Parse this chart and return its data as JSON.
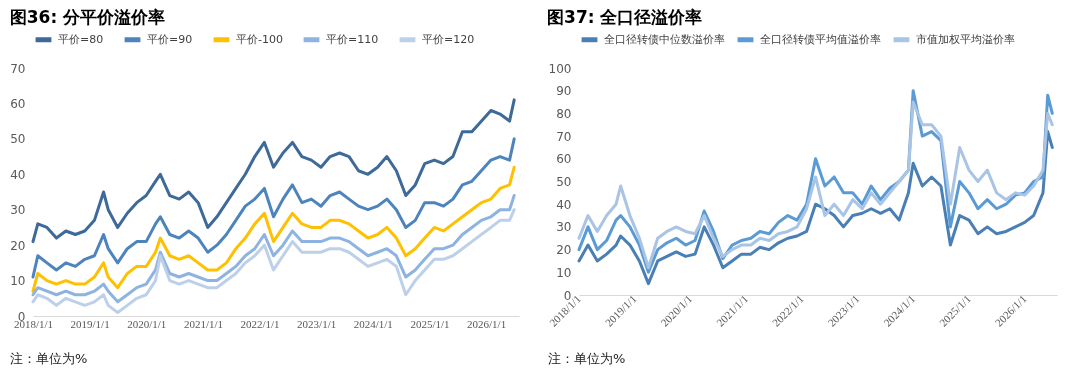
{
  "chart_data": [
    {
      "type": "line",
      "title": "图36: 分平价溢价率",
      "legend": "top",
      "annotations": [
        "注：单位为%"
      ],
      "x": [
        "2018-01",
        "2018-02",
        "2018-04",
        "2018-06",
        "2018-08",
        "2018-10",
        "2018-12",
        "2019-02",
        "2019-04",
        "2019-05",
        "2019-07",
        "2019-09",
        "2019-11",
        "2020-01",
        "2020-03",
        "2020-04",
        "2020-06",
        "2020-08",
        "2020-10",
        "2020-12",
        "2021-02",
        "2021-04",
        "2021-06",
        "2021-08",
        "2021-10",
        "2021-12",
        "2022-02",
        "2022-04",
        "2022-06",
        "2022-08",
        "2022-10",
        "2022-12",
        "2023-02",
        "2023-04",
        "2023-06",
        "2023-08",
        "2023-10",
        "2023-12",
        "2024-02",
        "2024-04",
        "2024-06",
        "2024-08",
        "2024-10",
        "2024-12",
        "2025-02",
        "2025-04",
        "2025-06",
        "2025-08",
        "2025-10",
        "2025-12",
        "2026-02",
        "2026-04",
        "2026-06",
        "2026-07"
      ],
      "xlim": [
        "2018-01-01",
        "2026-08-01"
      ],
      "xticks": [
        {
          "value": "2018-01-01",
          "label": "2018/1/1"
        },
        {
          "value": "2019-01-01",
          "label": "2019/1/1"
        },
        {
          "value": "2020-01-01",
          "label": "2020/1/1"
        },
        {
          "value": "2021-01-01",
          "label": "2021/1/1"
        },
        {
          "value": "2022-01-01",
          "label": "2022/1/1"
        },
        {
          "value": "2023-01-01",
          "label": "2023/1/1"
        },
        {
          "value": "2024-01-01",
          "label": "2024/1/1"
        },
        {
          "value": "2025-01-01",
          "label": "2025/1/1"
        },
        {
          "value": "2026-01-01",
          "label": "2026/1/1"
        }
      ],
      "ylim": [
        0,
        70
      ],
      "yticks": [
        0,
        10,
        20,
        30,
        40,
        50,
        60,
        70
      ],
      "series": [
        {
          "name": "平价=80",
          "color": "#3d6a99",
          "values": [
            21,
            26,
            25,
            22,
            24,
            23,
            24,
            27,
            35,
            30,
            25,
            29,
            32,
            34,
            38,
            40,
            34,
            33,
            35,
            32,
            25,
            28,
            32,
            36,
            40,
            45,
            49,
            42,
            46,
            49,
            45,
            44,
            42,
            45,
            46,
            45,
            41,
            40,
            42,
            45,
            41,
            34,
            37,
            43,
            44,
            43,
            45,
            52,
            52,
            55,
            58,
            57,
            55,
            61
          ]
        },
        {
          "name": "平价=90",
          "color": "#4d84bd",
          "values": [
            11,
            17,
            15,
            13,
            15,
            14,
            16,
            17,
            23,
            19,
            15,
            19,
            21,
            21,
            26,
            28,
            23,
            22,
            24,
            22,
            18,
            20,
            23,
            27,
            31,
            33,
            36,
            28,
            33,
            37,
            32,
            33,
            31,
            34,
            35,
            33,
            31,
            30,
            31,
            33,
            30,
            25,
            27,
            32,
            32,
            31,
            33,
            37,
            38,
            41,
            44,
            45,
            44,
            50
          ]
        },
        {
          "name": "平价-100",
          "color": "#ffc000",
          "values": [
            7,
            12,
            10,
            9,
            10,
            9,
            9,
            11,
            15,
            11,
            8,
            12,
            14,
            14,
            18,
            22,
            17,
            16,
            17,
            15,
            13,
            13,
            15,
            19,
            22,
            26,
            29,
            21,
            25,
            29,
            26,
            25,
            25,
            27,
            27,
            26,
            24,
            22,
            23,
            25,
            22,
            17,
            19,
            22,
            25,
            24,
            26,
            28,
            30,
            32,
            33,
            36,
            37,
            42
          ]
        },
        {
          "name": "平价=110",
          "color": "#8db3e2",
          "values": [
            6,
            8,
            7,
            6,
            7,
            6,
            6,
            7,
            9,
            7,
            4,
            6,
            8,
            9,
            13,
            18,
            12,
            11,
            12,
            11,
            10,
            10,
            12,
            14,
            17,
            19,
            23,
            17,
            20,
            24,
            21,
            21,
            21,
            22,
            22,
            21,
            19,
            17,
            18,
            19,
            17,
            11,
            13,
            16,
            19,
            19,
            20,
            23,
            25,
            27,
            28,
            30,
            30,
            34
          ]
        },
        {
          "name": "平价=120",
          "color": "#bdd0ea",
          "values": [
            4,
            6,
            5,
            3,
            5,
            4,
            3,
            4,
            6,
            3,
            1,
            3,
            5,
            6,
            10,
            17,
            10,
            9,
            10,
            9,
            8,
            8,
            10,
            12,
            15,
            17,
            20,
            13,
            17,
            21,
            18,
            18,
            18,
            19,
            19,
            18,
            16,
            14,
            15,
            16,
            14,
            6,
            10,
            13,
            16,
            16,
            17,
            19,
            21,
            23,
            25,
            27,
            27,
            30
          ]
        }
      ]
    },
    {
      "type": "line",
      "title": "图37: 全口径溢价率",
      "legend": "top",
      "annotations": [
        "注：单位为%"
      ],
      "x": [
        "2018-01",
        "2018-03",
        "2018-05",
        "2018-07",
        "2018-09",
        "2018-10",
        "2018-12",
        "2019-02",
        "2019-04",
        "2019-06",
        "2019-08",
        "2019-10",
        "2019-12",
        "2020-02",
        "2020-04",
        "2020-06",
        "2020-08",
        "2020-10",
        "2020-12",
        "2021-02",
        "2021-04",
        "2021-06",
        "2021-08",
        "2021-10",
        "2021-12",
        "2022-02",
        "2022-04",
        "2022-06",
        "2022-08",
        "2022-10",
        "2022-12",
        "2023-02",
        "2023-04",
        "2023-06",
        "2023-08",
        "2023-10",
        "2023-12",
        "2024-01",
        "2024-03",
        "2024-05",
        "2024-07",
        "2024-09",
        "2024-11",
        "2025-01",
        "2025-03",
        "2025-05",
        "2025-07",
        "2025-09",
        "2025-11",
        "2026-01",
        "2026-03",
        "2026-05",
        "2026-06",
        "2026-07"
      ],
      "xlim": [
        "2018-01-01",
        "2026-08-01"
      ],
      "xticks": [
        {
          "value": "2018-01-01",
          "label": "2018/1/1"
        },
        {
          "value": "2019-01-01",
          "label": "2019/1/1"
        },
        {
          "value": "2020-01-01",
          "label": "2020/1/1"
        },
        {
          "value": "2021-01-01",
          "label": "2021/1/1"
        },
        {
          "value": "2022-01-01",
          "label": "2022/1/1"
        },
        {
          "value": "2023-01-01",
          "label": "2023/1/1"
        },
        {
          "value": "2024-01-01",
          "label": "2024/1/1"
        },
        {
          "value": "2025-01-01",
          "label": "2025/1/1"
        },
        {
          "value": "2026-01-01",
          "label": "2026/1/1"
        }
      ],
      "ylim": [
        0,
        100
      ],
      "yticks": [
        0,
        10,
        20,
        30,
        40,
        50,
        60,
        70,
        80,
        90,
        100
      ],
      "series": [
        {
          "name": "全口径转债中位数溢价率",
          "color": "#4a7fb5",
          "values": [
            15,
            22,
            15,
            18,
            22,
            26,
            22,
            15,
            5,
            15,
            17,
            19,
            17,
            18,
            30,
            22,
            12,
            15,
            18,
            18,
            21,
            20,
            23,
            25,
            26,
            28,
            40,
            38,
            35,
            30,
            35,
            36,
            38,
            36,
            38,
            33,
            45,
            58,
            48,
            52,
            48,
            22,
            35,
            33,
            27,
            30,
            27,
            28,
            30,
            32,
            35,
            45,
            72,
            65
          ]
        },
        {
          "name": "全口径转债平均值溢价率",
          "color": "#5b9bd5",
          "values": [
            20,
            30,
            20,
            24,
            33,
            35,
            30,
            22,
            10,
            20,
            23,
            25,
            22,
            24,
            37,
            28,
            16,
            22,
            24,
            25,
            28,
            27,
            32,
            35,
            33,
            40,
            60,
            48,
            52,
            45,
            45,
            40,
            48,
            42,
            47,
            50,
            55,
            90,
            70,
            72,
            68,
            30,
            50,
            45,
            38,
            42,
            38,
            40,
            44,
            45,
            50,
            52,
            88,
            80
          ]
        },
        {
          "name": "市值加权平均溢价率",
          "color": "#a9c4e4",
          "values": [
            25,
            35,
            28,
            35,
            40,
            48,
            35,
            25,
            12,
            25,
            28,
            30,
            28,
            27,
            35,
            25,
            17,
            20,
            22,
            22,
            25,
            24,
            27,
            28,
            30,
            38,
            52,
            35,
            40,
            35,
            42,
            38,
            45,
            40,
            45,
            50,
            55,
            85,
            75,
            75,
            70,
            40,
            65,
            55,
            50,
            55,
            45,
            42,
            45,
            44,
            48,
            55,
            80,
            75
          ]
        }
      ]
    }
  ]
}
